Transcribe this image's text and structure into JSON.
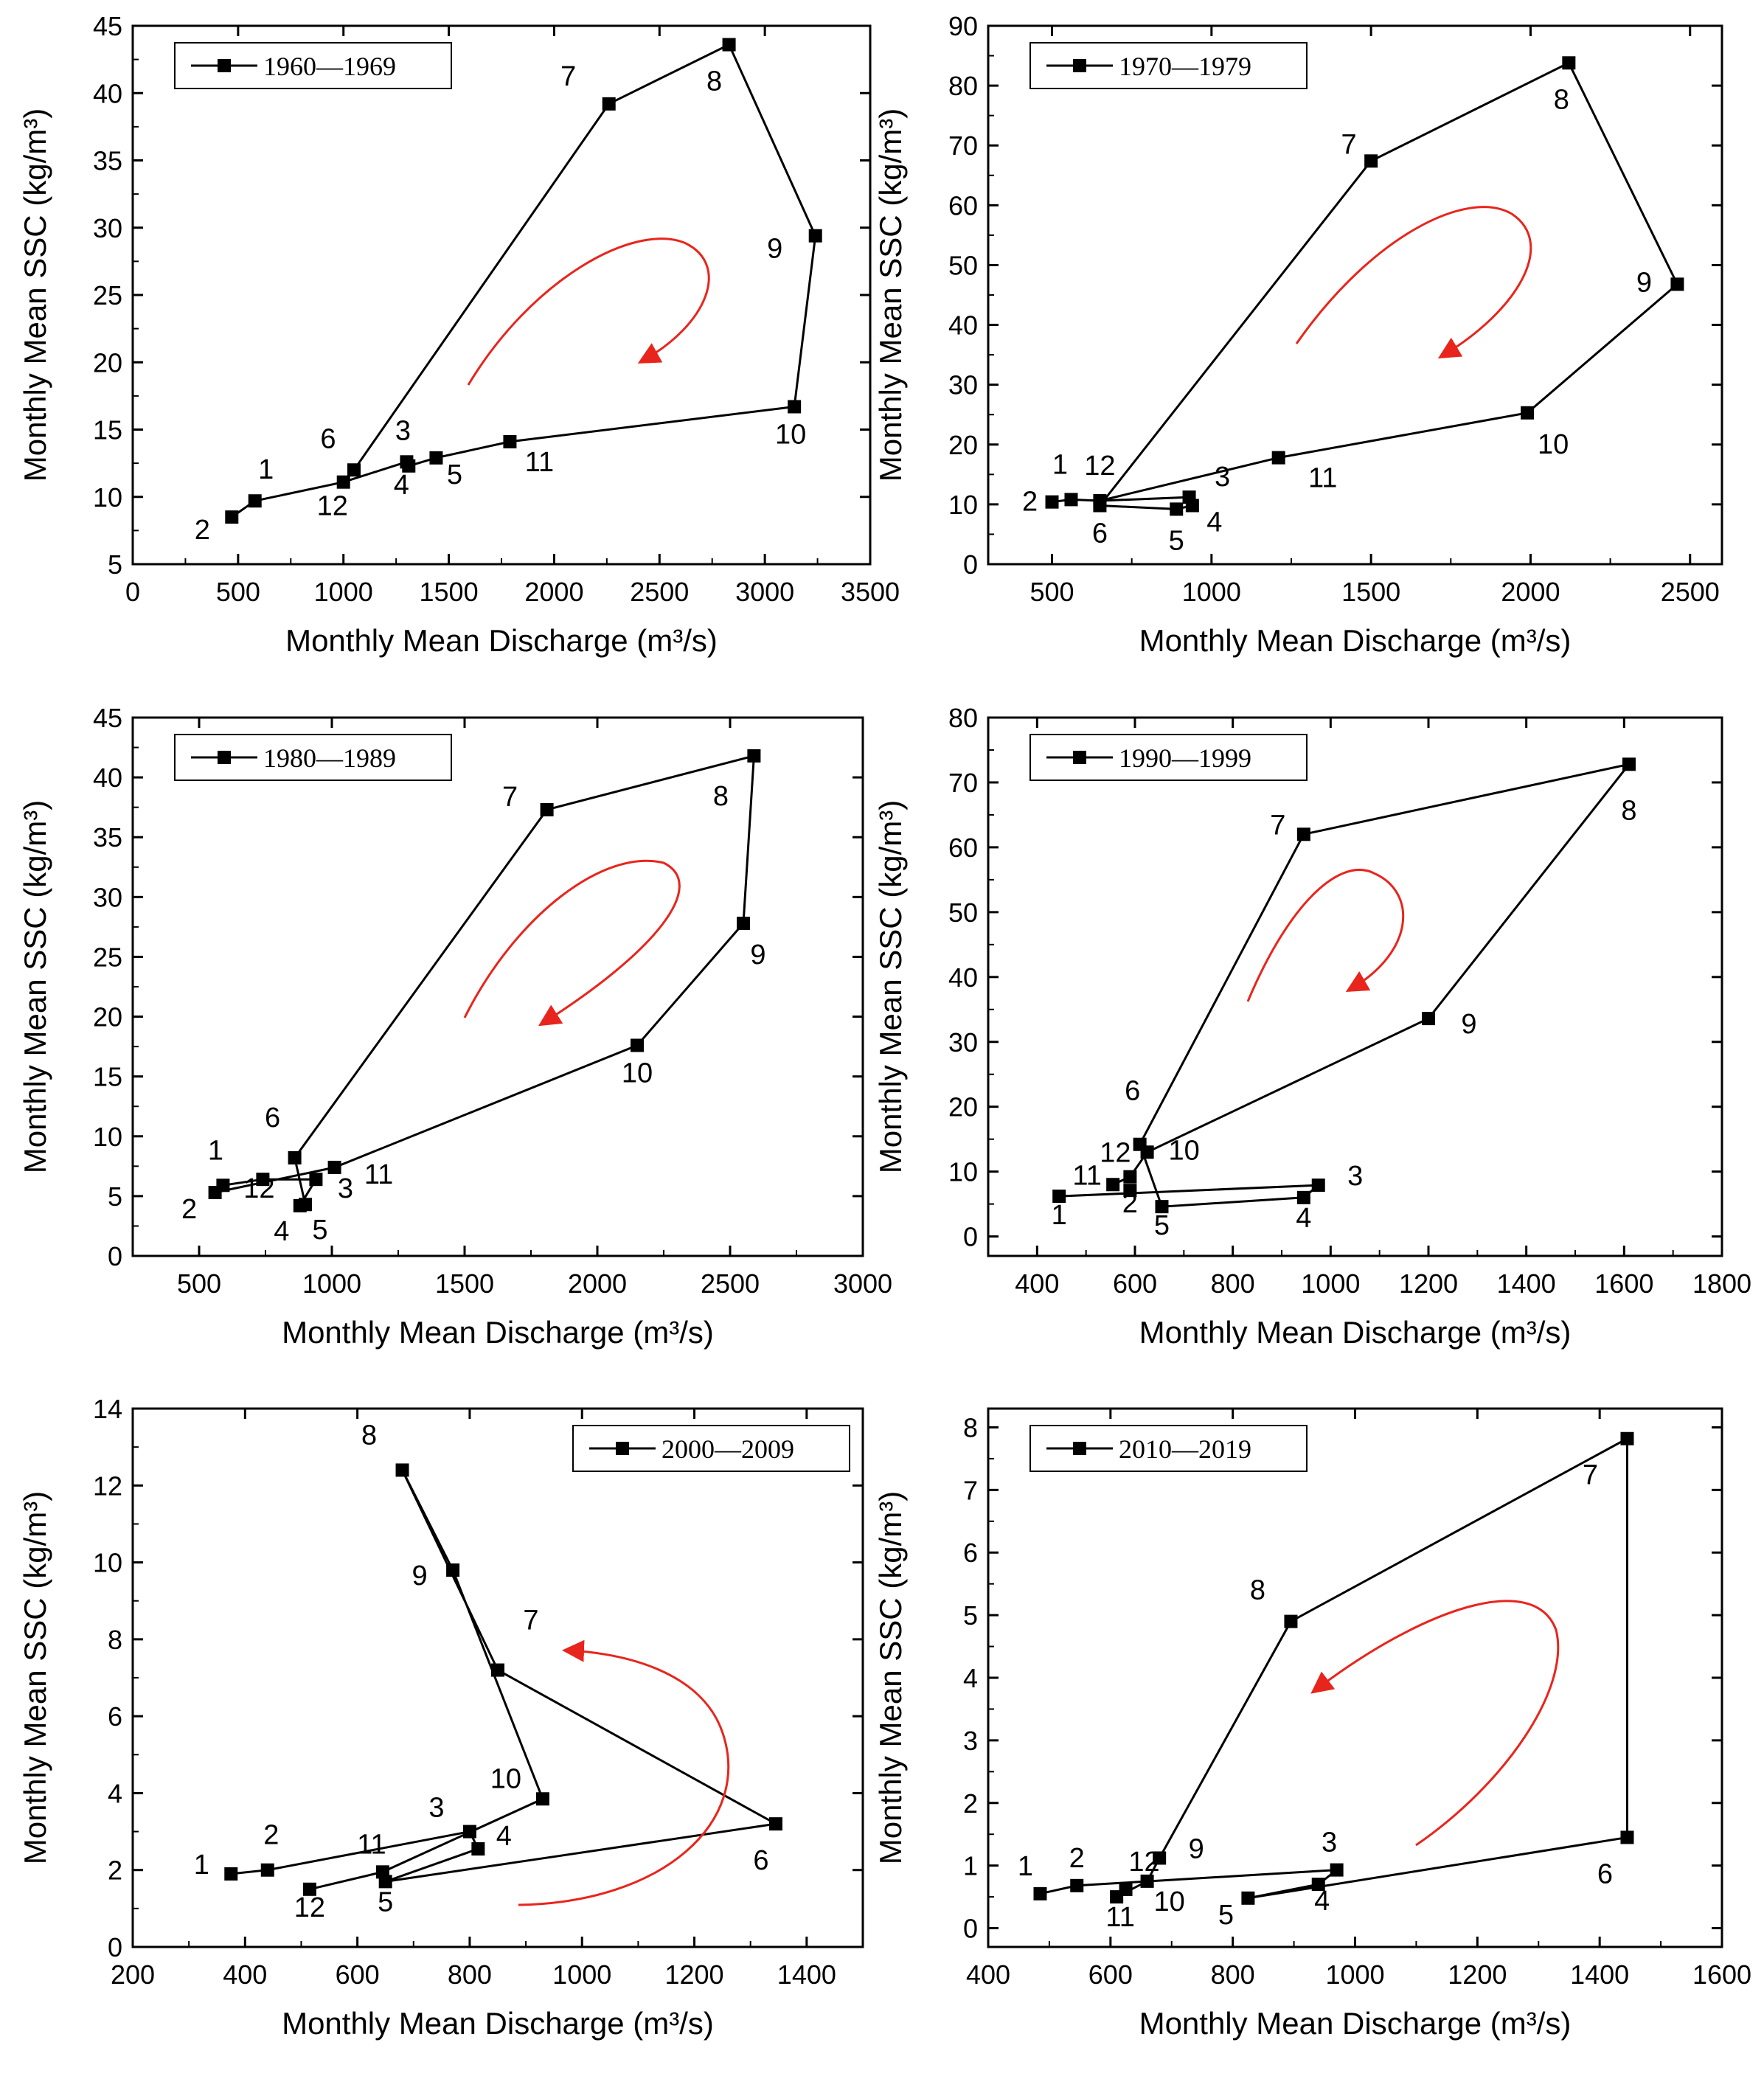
{
  "chart_data": [
    {
      "type": "line",
      "legend": "1960—1969",
      "legend_position": "top-left",
      "xlabel": "Monthly Mean Discharge (m³/s)",
      "ylabel": "Monthly Mean SSC (kg/m³)",
      "xlim": [
        0,
        3500
      ],
      "ylim": [
        5,
        45
      ],
      "xticks": [
        0,
        500,
        1000,
        1500,
        2000,
        2500,
        3000,
        3500
      ],
      "yticks": [
        5,
        10,
        15,
        20,
        25,
        30,
        35,
        40,
        45
      ],
      "points": [
        {
          "month": "1",
          "x": 580,
          "y": 9.7
        },
        {
          "month": "2",
          "x": 470,
          "y": 8.5
        },
        {
          "month": "3",
          "x": 1300,
          "y": 12.6
        },
        {
          "month": "4",
          "x": 1310,
          "y": 12.3
        },
        {
          "month": "5",
          "x": 1440,
          "y": 12.9
        },
        {
          "month": "6",
          "x": 1050,
          "y": 12.0
        },
        {
          "month": "7",
          "x": 2260,
          "y": 39.2
        },
        {
          "month": "8",
          "x": 2830,
          "y": 43.6
        },
        {
          "month": "9",
          "x": 3240,
          "y": 29.4
        },
        {
          "month": "10",
          "x": 3140,
          "y": 16.7
        },
        {
          "month": "11",
          "x": 1790,
          "y": 14.1
        },
        {
          "month": "12",
          "x": 1000,
          "y": 11.1
        }
      ],
      "path_order": [
        "2",
        "1",
        "12",
        "3",
        "4",
        "5",
        "11",
        "10",
        "9",
        "8",
        "7",
        "6",
        "12"
      ],
      "hysteresis": "clockwise"
    },
    {
      "type": "line",
      "legend": "1970—1979",
      "legend_position": "top-left",
      "xlabel": "Monthly Mean Discharge (m³/s)",
      "ylabel": "Monthly Mean SSC (kg/m³)",
      "xlim": [
        300,
        2600
      ],
      "ylim": [
        0,
        90
      ],
      "xticks": [
        500,
        1000,
        1500,
        2000,
        2500
      ],
      "yticks": [
        0,
        10,
        20,
        30,
        40,
        50,
        60,
        70,
        80,
        90
      ],
      "points": [
        {
          "month": "1",
          "x": 560,
          "y": 10.8
        },
        {
          "month": "2",
          "x": 500,
          "y": 10.4
        },
        {
          "month": "3",
          "x": 930,
          "y": 11.2
        },
        {
          "month": "4",
          "x": 940,
          "y": 9.8
        },
        {
          "month": "5",
          "x": 890,
          "y": 9.2
        },
        {
          "month": "6",
          "x": 650,
          "y": 9.8
        },
        {
          "month": "7",
          "x": 1500,
          "y": 67.4
        },
        {
          "month": "8",
          "x": 2120,
          "y": 83.8
        },
        {
          "month": "9",
          "x": 2460,
          "y": 46.8
        },
        {
          "month": "10",
          "x": 1990,
          "y": 25.3
        },
        {
          "month": "11",
          "x": 1210,
          "y": 17.8
        },
        {
          "month": "12",
          "x": 650,
          "y": 10.6
        }
      ],
      "path_order": [
        "2",
        "1",
        "12",
        "3",
        "4",
        "5",
        "6",
        "7",
        "8",
        "9",
        "10",
        "11",
        "12"
      ],
      "hysteresis": "clockwise"
    },
    {
      "type": "line",
      "legend": "1980—1989",
      "legend_position": "top-left",
      "xlabel": "Monthly Mean Discharge (m³/s)",
      "ylabel": "Monthly Mean SSC (kg/m³)",
      "xlim": [
        250,
        3000
      ],
      "ylim": [
        0,
        45
      ],
      "xticks": [
        500,
        1000,
        1500,
        2000,
        2500,
        3000
      ],
      "yticks": [
        0,
        5,
        10,
        15,
        20,
        25,
        30,
        35,
        40,
        45
      ],
      "points": [
        {
          "month": "1",
          "x": 590,
          "y": 5.9
        },
        {
          "month": "2",
          "x": 560,
          "y": 5.3
        },
        {
          "month": "3",
          "x": 940,
          "y": 6.4
        },
        {
          "month": "4",
          "x": 880,
          "y": 4.2
        },
        {
          "month": "5",
          "x": 900,
          "y": 4.3
        },
        {
          "month": "6",
          "x": 860,
          "y": 8.2
        },
        {
          "month": "7",
          "x": 1810,
          "y": 37.3
        },
        {
          "month": "8",
          "x": 2590,
          "y": 41.8
        },
        {
          "month": "9",
          "x": 2550,
          "y": 27.8
        },
        {
          "month": "10",
          "x": 2150,
          "y": 17.6
        },
        {
          "month": "11",
          "x": 1010,
          "y": 7.4
        },
        {
          "month": "12",
          "x": 740,
          "y": 6.4
        }
      ],
      "path_order": [
        "2",
        "1",
        "12",
        "3",
        "4",
        "5",
        "6",
        "7",
        "8",
        "9",
        "10",
        "11",
        "2"
      ],
      "hysteresis": "clockwise"
    },
    {
      "type": "line",
      "legend": "1990—1999",
      "legend_position": "top-left",
      "xlabel": "Monthly Mean Discharge (m³/s)",
      "ylabel": "Monthly Mean SSC (kg/m³)",
      "xlim": [
        300,
        1800
      ],
      "ylim": [
        -3,
        80
      ],
      "xticks": [
        400,
        600,
        800,
        1000,
        1200,
        1400,
        1600,
        1800
      ],
      "yticks": [
        0,
        10,
        20,
        30,
        40,
        50,
        60,
        70,
        80
      ],
      "points": [
        {
          "month": "1",
          "x": 445,
          "y": 6.2
        },
        {
          "month": "2",
          "x": 590,
          "y": 7.1
        },
        {
          "month": "3",
          "x": 975,
          "y": 7.9
        },
        {
          "month": "4",
          "x": 945,
          "y": 6.0
        },
        {
          "month": "5",
          "x": 655,
          "y": 4.6
        },
        {
          "month": "6",
          "x": 610,
          "y": 14.2
        },
        {
          "month": "7",
          "x": 945,
          "y": 62.0
        },
        {
          "month": "8",
          "x": 1610,
          "y": 72.8
        },
        {
          "month": "9",
          "x": 1200,
          "y": 33.6
        },
        {
          "month": "10",
          "x": 625,
          "y": 13.0
        },
        {
          "month": "11",
          "x": 555,
          "y": 8.0
        },
        {
          "month": "12",
          "x": 590,
          "y": 9.2
        }
      ],
      "path_order": [
        "1",
        "3",
        "4",
        "5",
        "6",
        "7",
        "8",
        "9",
        "10",
        "12",
        "11"
      ],
      "hysteresis": "clockwise"
    },
    {
      "type": "line",
      "legend": "2000—2009",
      "legend_position": "top-right",
      "xlabel": "Monthly Mean Discharge (m³/s)",
      "ylabel": "Monthly Mean SSC (kg/m³)",
      "xlim": [
        200,
        1500
      ],
      "ylim": [
        0,
        14
      ],
      "xticks": [
        200,
        400,
        600,
        800,
        1000,
        1200,
        1400
      ],
      "yticks": [
        0,
        2,
        4,
        6,
        8,
        10,
        12,
        14
      ],
      "points": [
        {
          "month": "1",
          "x": 375,
          "y": 1.9
        },
        {
          "month": "2",
          "x": 440,
          "y": 2.0
        },
        {
          "month": "3",
          "x": 800,
          "y": 3.0
        },
        {
          "month": "4",
          "x": 815,
          "y": 2.55
        },
        {
          "month": "5",
          "x": 650,
          "y": 1.7
        },
        {
          "month": "6",
          "x": 1345,
          "y": 3.2
        },
        {
          "month": "7",
          "x": 850,
          "y": 7.2
        },
        {
          "month": "8",
          "x": 680,
          "y": 12.4
        },
        {
          "month": "9",
          "x": 770,
          "y": 9.8
        },
        {
          "month": "10",
          "x": 930,
          "y": 3.85
        },
        {
          "month": "11",
          "x": 645,
          "y": 1.95
        },
        {
          "month": "12",
          "x": 515,
          "y": 1.5
        }
      ],
      "path_order": [
        "1",
        "2",
        "3",
        "4",
        "5",
        "6",
        "7",
        "8",
        "9",
        "10",
        "11",
        "12"
      ],
      "hysteresis": "counter-clockwise"
    },
    {
      "type": "line",
      "legend": "2010—2019",
      "legend_position": "top-left",
      "xlabel": "Monthly Mean Discharge (m³/s)",
      "ylabel": "Monthly Mean SSC (kg/m³)",
      "xlim": [
        400,
        1600
      ],
      "ylim": [
        -0.3,
        8.3
      ],
      "xticks": [
        400,
        600,
        800,
        1000,
        1200,
        1400,
        1600
      ],
      "yticks": [
        0,
        1,
        2,
        3,
        4,
        5,
        6,
        7,
        8
      ],
      "points": [
        {
          "month": "1",
          "x": 485,
          "y": 0.55
        },
        {
          "month": "2",
          "x": 545,
          "y": 0.68
        },
        {
          "month": "3",
          "x": 970,
          "y": 0.93
        },
        {
          "month": "4",
          "x": 940,
          "y": 0.7
        },
        {
          "month": "5",
          "x": 825,
          "y": 0.48
        },
        {
          "month": "6",
          "x": 1445,
          "y": 1.45
        },
        {
          "month": "7",
          "x": 1445,
          "y": 7.82
        },
        {
          "month": "8",
          "x": 895,
          "y": 4.9
        },
        {
          "month": "9",
          "x": 680,
          "y": 1.12
        },
        {
          "month": "10",
          "x": 660,
          "y": 0.75
        },
        {
          "month": "11",
          "x": 610,
          "y": 0.5
        },
        {
          "month": "12",
          "x": 625,
          "y": 0.62
        }
      ],
      "path_order": [
        "1",
        "2",
        "3",
        "4",
        "5",
        "6",
        "7",
        "8",
        "9",
        "10",
        "11",
        "12"
      ],
      "hysteresis": "counter-clockwise"
    }
  ]
}
